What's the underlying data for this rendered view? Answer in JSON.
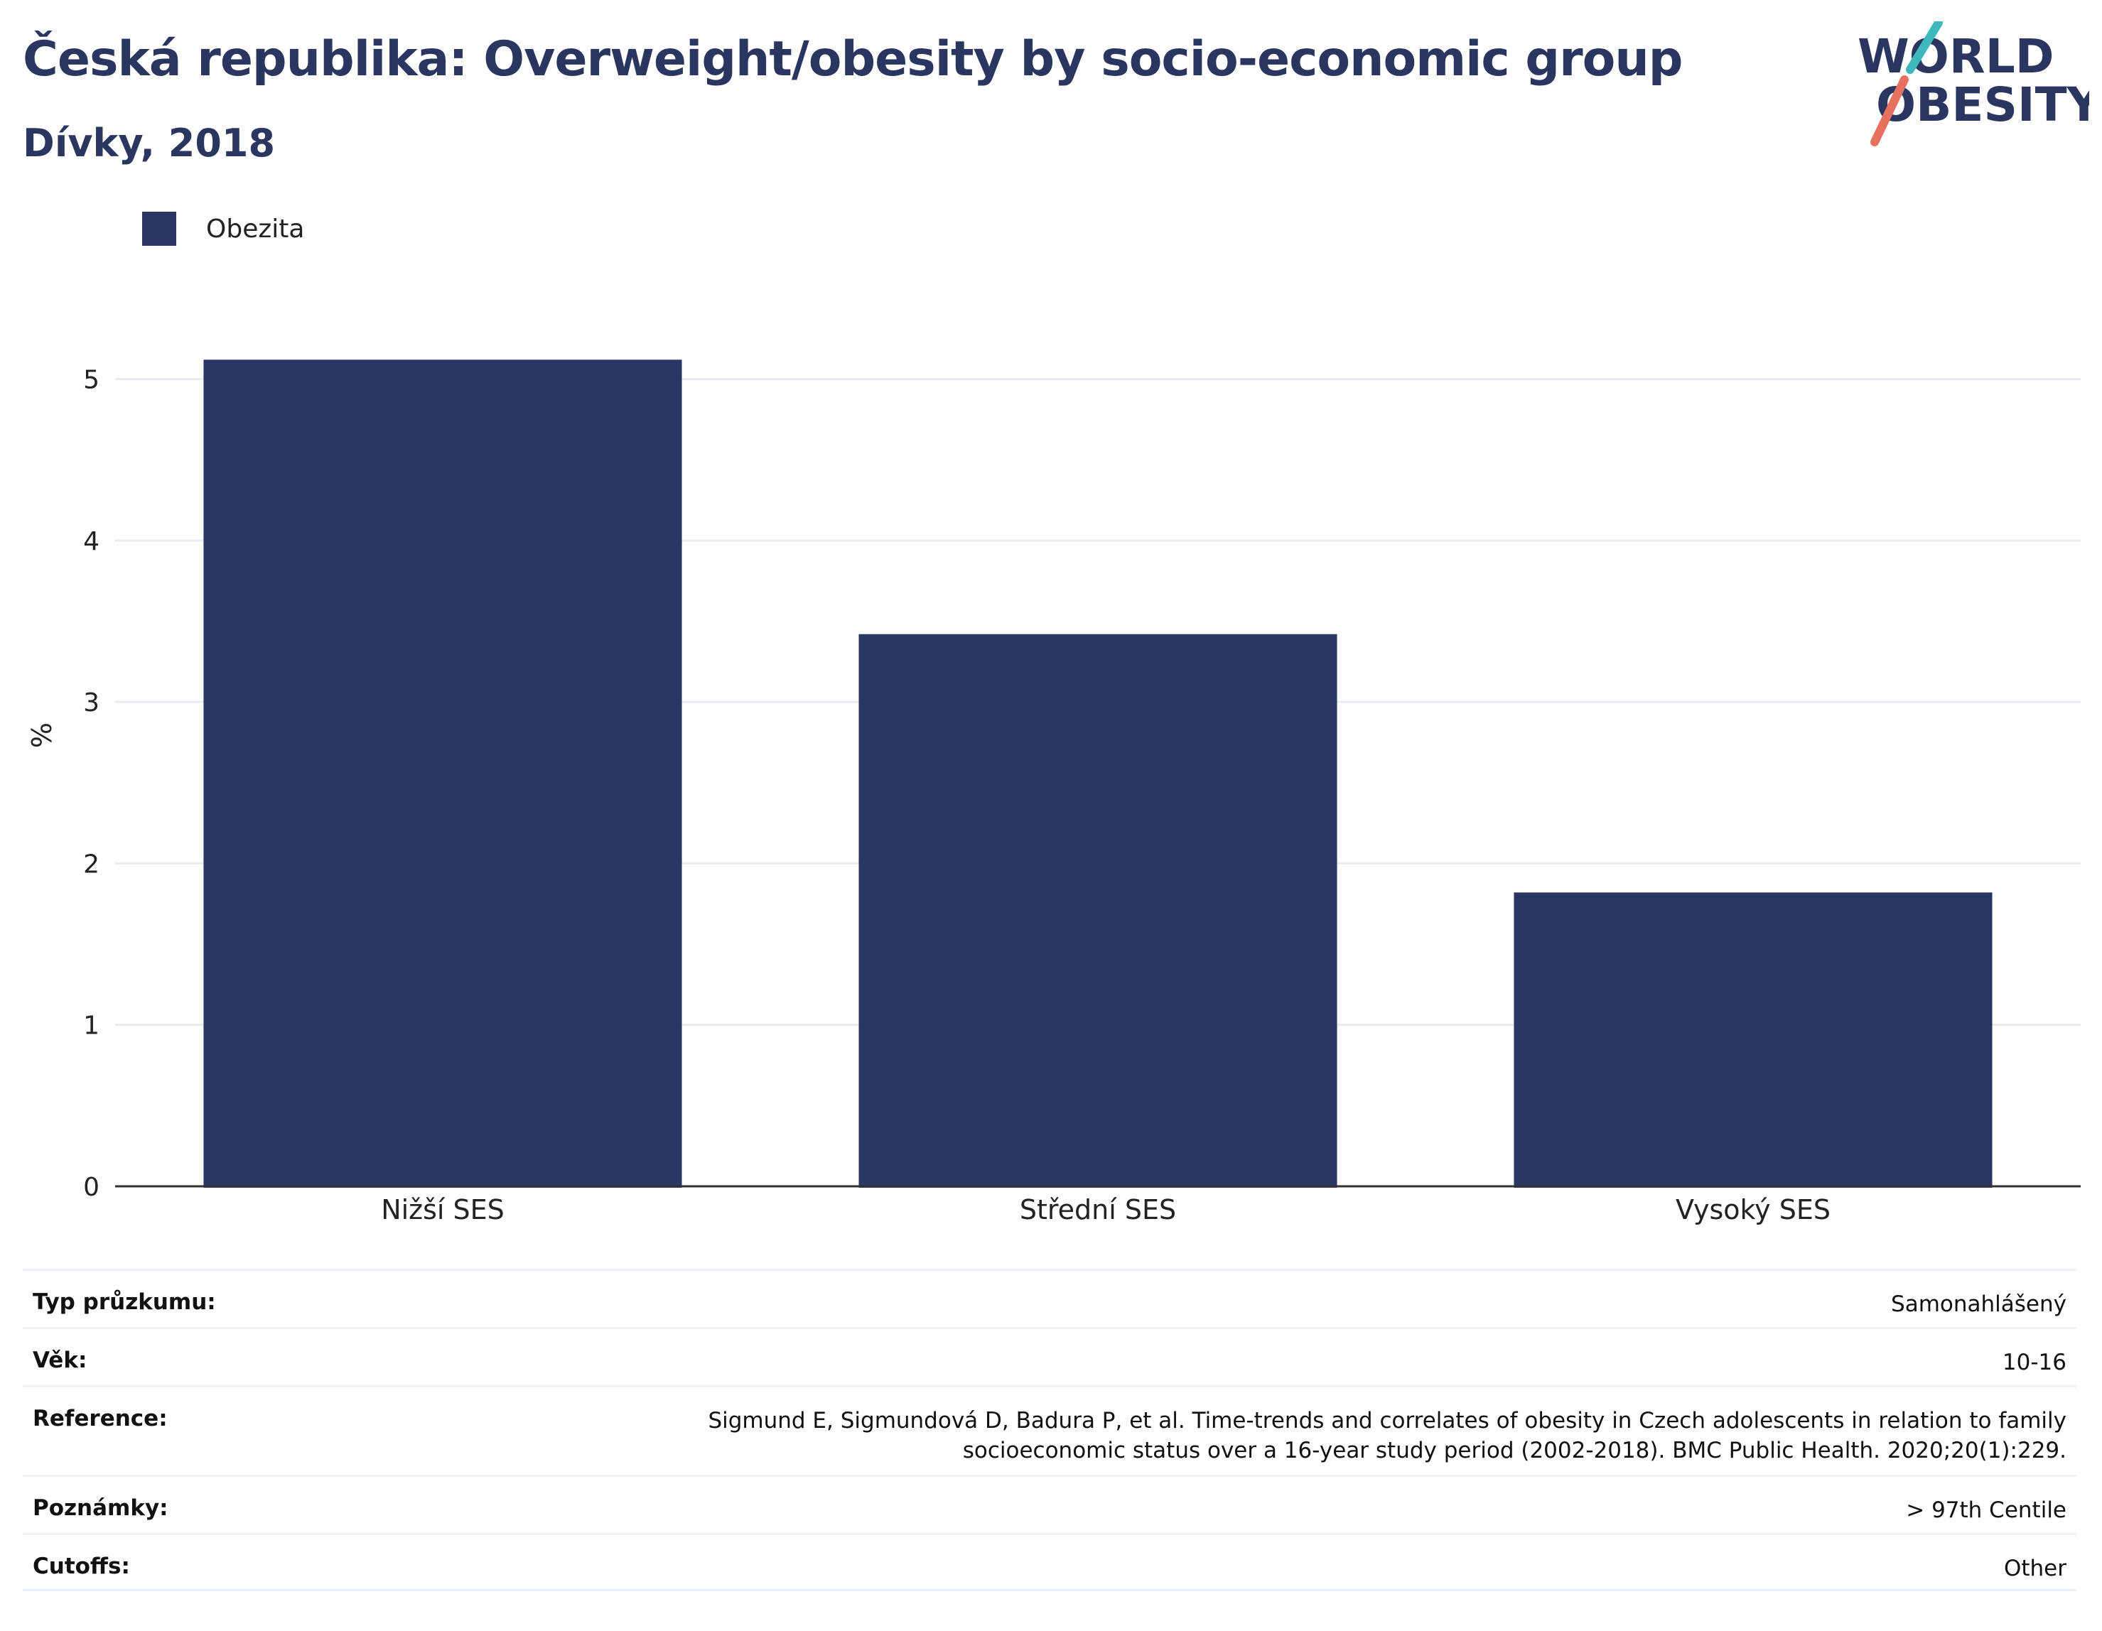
{
  "header": {
    "title": "Česká republika: Overweight/obesity by socio-economic group",
    "subtitle": "Dívky, 2018"
  },
  "logo": {
    "line1": "WORLD",
    "line2": "OBESITY",
    "accent_teal": "#3fb8bd",
    "accent_coral": "#e8705f"
  },
  "colors": {
    "bar": "#2a3663",
    "text": "#2a3660"
  },
  "chart_data": {
    "type": "bar",
    "categories": [
      "Nižší SES",
      "Střední SES",
      "Vysoký SES"
    ],
    "series": [
      {
        "name": "Obezita",
        "values": [
          5.12,
          3.42,
          1.82
        ]
      }
    ],
    "ylabel": "%",
    "xlabel": "",
    "ylim": [
      0,
      5.5
    ],
    "yticks": [
      0,
      1,
      2,
      3,
      4,
      5
    ],
    "grid": true,
    "legend": "top-left"
  },
  "info": [
    {
      "key": "Typ průzkumu:",
      "value": "Samonahlášený"
    },
    {
      "key": "Věk:",
      "value": "10-16"
    },
    {
      "key": "Reference:",
      "value": "Sigmund E, Sigmundová D, Badura P, et al. Time-trends and correlates of obesity in Czech adolescents in relation to family socioeconomic status over a 16-year study period (2002-2018). BMC Public Health. 2020;20(1):229."
    },
    {
      "key": "Poznámky:",
      "value": "> 97th Centile"
    },
    {
      "key": "Cutoffs:",
      "value": "Other"
    }
  ]
}
